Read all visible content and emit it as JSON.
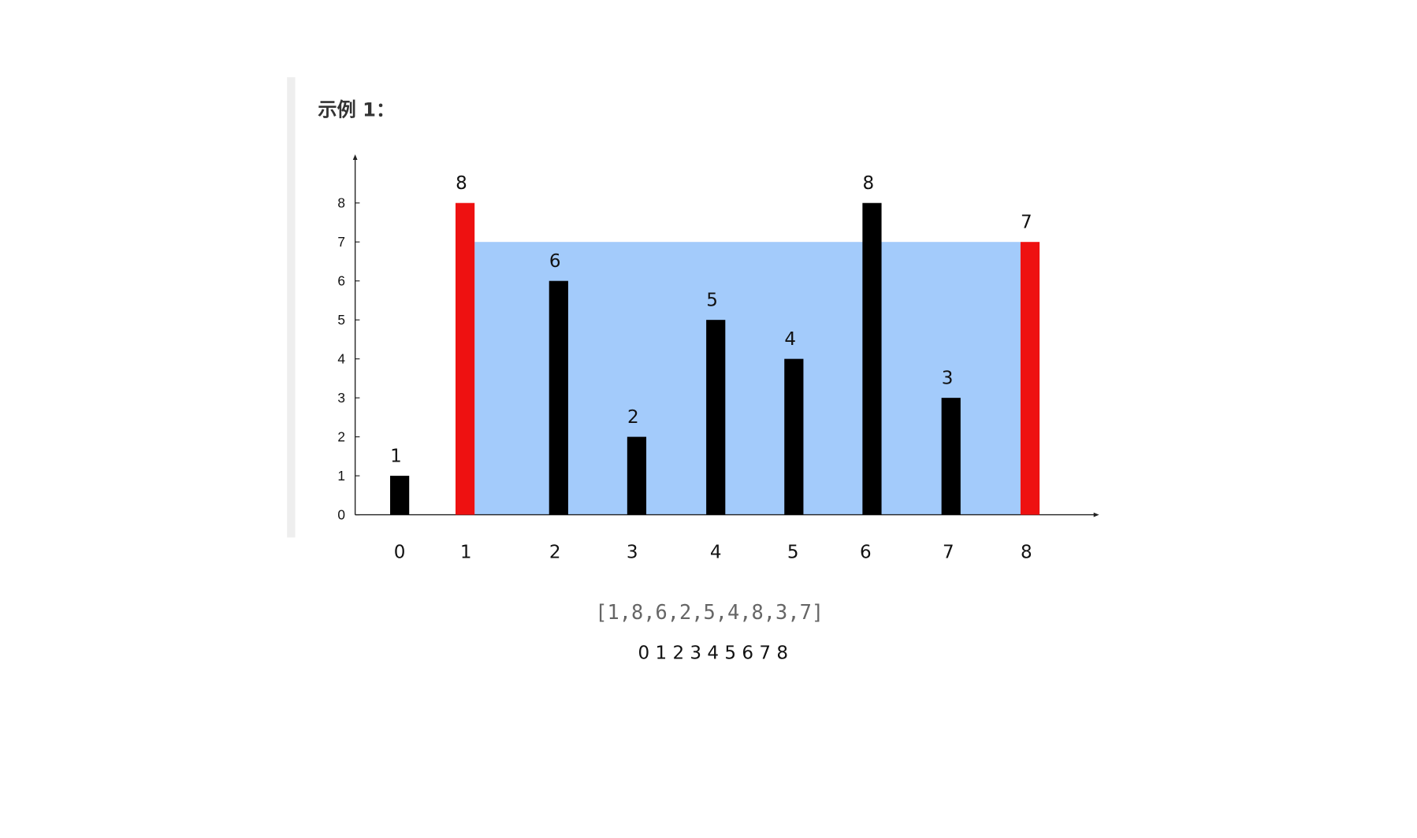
{
  "heading": "示例 1：",
  "array_text": "[1,8,6,2,5,4,8,3,7]",
  "index_text": "0 1 2 3 4 5 6 7 8",
  "chart_data": {
    "type": "bar",
    "categories": [
      "0",
      "1",
      "2",
      "3",
      "4",
      "5",
      "6",
      "7",
      "8"
    ],
    "values": [
      1,
      8,
      6,
      2,
      5,
      4,
      8,
      3,
      7
    ],
    "color": "#000000",
    "highlight": [
      "1",
      "8"
    ],
    "highlight_color": "#ee1111",
    "fill_color": "#a3cbfb",
    "ylim": [
      0,
      9.2
    ],
    "yticks": [
      0,
      1,
      2,
      3,
      4,
      5,
      6,
      7,
      8
    ],
    "grid": false
  }
}
